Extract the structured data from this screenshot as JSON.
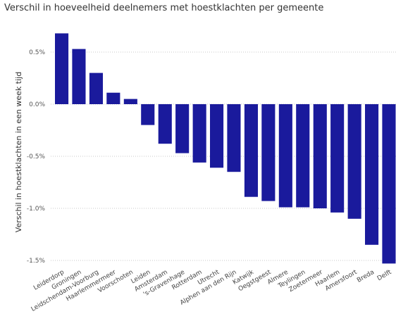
{
  "chart_data": {
    "type": "bar",
    "title": "Verschil in hoeveelheid deelnemers met hoestklachten per gemeente",
    "ylabel": "Verschil in hoestklachten in een week tijd",
    "xlabel": "",
    "ylim": [
      -1.5,
      0.7
    ],
    "yticks": [
      0.5,
      0.0,
      -0.5,
      -1.0,
      -1.5
    ],
    "ytick_labels": [
      "0.5%",
      "0.0%",
      "-0.5%",
      "-1.0%",
      "-1.5%"
    ],
    "grid": true,
    "bar_color": "#1a1a9c",
    "categories": [
      "Leiderdorp",
      "Groningen",
      "Leidschendam-Voorburg",
      "Haarlemmermeer",
      "Voorschoten",
      "Leiden",
      "Amsterdam",
      "'s-Gravenhage",
      "Rotterdam",
      "Utrecht",
      "Alphen aan den Rijn",
      "Katwijk",
      "Oegstgeest",
      "Almere",
      "Teylingen",
      "Zoetermeer",
      "Haarlem",
      "Amersfoort",
      "Breda",
      "Delft"
    ],
    "values": [
      0.68,
      0.53,
      0.3,
      0.11,
      0.05,
      -0.2,
      -0.38,
      -0.47,
      -0.56,
      -0.61,
      -0.65,
      -0.89,
      -0.93,
      -0.99,
      -0.99,
      -1.0,
      -1.04,
      -1.1,
      -1.35,
      -1.53
    ]
  }
}
